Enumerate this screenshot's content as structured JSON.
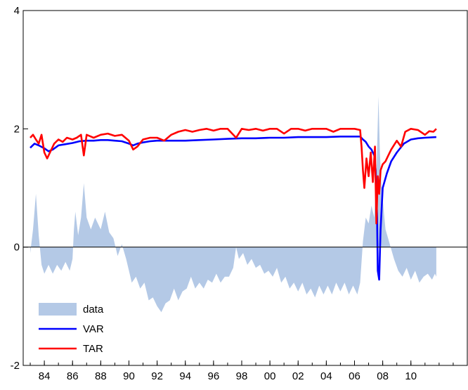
{
  "chart_data": {
    "type": "area",
    "title": "",
    "xlabel": "",
    "ylabel": "",
    "xlim": [
      1982.5,
      2014.0
    ],
    "ylim": [
      -2,
      4
    ],
    "y_ticks": [
      -2,
      0,
      2,
      4
    ],
    "x_ticks": [
      1984,
      1986,
      1988,
      1990,
      1992,
      1994,
      1996,
      1998,
      2000,
      2002,
      2004,
      2006,
      2008,
      2010
    ],
    "x_tick_labels": [
      "84",
      "86",
      "88",
      "90",
      "92",
      "94",
      "96",
      "98",
      "00",
      "02",
      "04",
      "06",
      "08",
      "10"
    ],
    "grid": false,
    "zero_line": true,
    "legend": {
      "position": "bottom-left"
    },
    "series": [
      {
        "name": "data",
        "kind": "area",
        "color": "#b4c9e6",
        "points": [
          [
            1983.0,
            -0.1
          ],
          [
            1983.2,
            0.3
          ],
          [
            1983.4,
            0.9
          ],
          [
            1983.6,
            0.2
          ],
          [
            1983.8,
            -0.3
          ],
          [
            1984.0,
            -0.45
          ],
          [
            1984.3,
            -0.3
          ],
          [
            1984.6,
            -0.45
          ],
          [
            1984.9,
            -0.3
          ],
          [
            1985.2,
            -0.4
          ],
          [
            1985.5,
            -0.25
          ],
          [
            1985.8,
            -0.4
          ],
          [
            1986.0,
            -0.2
          ],
          [
            1986.1,
            0.3
          ],
          [
            1986.2,
            0.6
          ],
          [
            1986.4,
            0.2
          ],
          [
            1986.6,
            0.5
          ],
          [
            1986.8,
            1.08
          ],
          [
            1987.0,
            0.5
          ],
          [
            1987.3,
            0.3
          ],
          [
            1987.6,
            0.5
          ],
          [
            1988.0,
            0.3
          ],
          [
            1988.3,
            0.6
          ],
          [
            1988.6,
            0.25
          ],
          [
            1988.9,
            0.15
          ],
          [
            1989.2,
            -0.15
          ],
          [
            1989.5,
            0.05
          ],
          [
            1989.8,
            -0.2
          ],
          [
            1990.0,
            -0.4
          ],
          [
            1990.2,
            -0.6
          ],
          [
            1990.5,
            -0.5
          ],
          [
            1990.8,
            -0.7
          ],
          [
            1991.1,
            -0.6
          ],
          [
            1991.4,
            -0.9
          ],
          [
            1991.7,
            -0.85
          ],
          [
            1992.0,
            -1.0
          ],
          [
            1992.3,
            -1.1
          ],
          [
            1992.6,
            -0.95
          ],
          [
            1992.9,
            -0.9
          ],
          [
            1993.2,
            -0.7
          ],
          [
            1993.5,
            -0.9
          ],
          [
            1993.8,
            -0.75
          ],
          [
            1994.1,
            -0.7
          ],
          [
            1994.4,
            -0.5
          ],
          [
            1994.7,
            -0.7
          ],
          [
            1995.0,
            -0.6
          ],
          [
            1995.3,
            -0.7
          ],
          [
            1995.6,
            -0.55
          ],
          [
            1995.9,
            -0.6
          ],
          [
            1996.2,
            -0.45
          ],
          [
            1996.5,
            -0.6
          ],
          [
            1996.8,
            -0.5
          ],
          [
            1997.1,
            -0.5
          ],
          [
            1997.4,
            -0.35
          ],
          [
            1997.6,
            0.0
          ],
          [
            1997.8,
            -0.2
          ],
          [
            1998.1,
            -0.1
          ],
          [
            1998.4,
            -0.3
          ],
          [
            1998.7,
            -0.2
          ],
          [
            1999.0,
            -0.35
          ],
          [
            1999.3,
            -0.3
          ],
          [
            1999.6,
            -0.45
          ],
          [
            1999.9,
            -0.4
          ],
          [
            2000.2,
            -0.5
          ],
          [
            2000.5,
            -0.35
          ],
          [
            2000.8,
            -0.6
          ],
          [
            2001.1,
            -0.5
          ],
          [
            2001.4,
            -0.7
          ],
          [
            2001.7,
            -0.6
          ],
          [
            2002.0,
            -0.75
          ],
          [
            2002.3,
            -0.6
          ],
          [
            2002.6,
            -0.8
          ],
          [
            2002.9,
            -0.7
          ],
          [
            2003.2,
            -0.85
          ],
          [
            2003.5,
            -0.65
          ],
          [
            2003.8,
            -0.8
          ],
          [
            2004.1,
            -0.65
          ],
          [
            2004.4,
            -0.8
          ],
          [
            2004.7,
            -0.6
          ],
          [
            2005.0,
            -0.75
          ],
          [
            2005.3,
            -0.6
          ],
          [
            2005.6,
            -0.8
          ],
          [
            2005.9,
            -0.65
          ],
          [
            2006.2,
            -0.8
          ],
          [
            2006.4,
            -0.6
          ],
          [
            2006.6,
            0.1
          ],
          [
            2006.8,
            0.5
          ],
          [
            2007.0,
            0.4
          ],
          [
            2007.2,
            0.7
          ],
          [
            2007.4,
            0.5
          ],
          [
            2007.55,
            1.2
          ],
          [
            2007.7,
            2.55
          ],
          [
            2007.8,
            1.6
          ],
          [
            2007.9,
            1.1
          ],
          [
            2008.0,
            0.8
          ],
          [
            2008.2,
            0.3
          ],
          [
            2008.5,
            0.05
          ],
          [
            2008.8,
            -0.2
          ],
          [
            2009.1,
            -0.4
          ],
          [
            2009.4,
            -0.5
          ],
          [
            2009.7,
            -0.35
          ],
          [
            2010.0,
            -0.55
          ],
          [
            2010.3,
            -0.4
          ],
          [
            2010.6,
            -0.6
          ],
          [
            2010.9,
            -0.5
          ],
          [
            2011.2,
            -0.45
          ],
          [
            2011.5,
            -0.55
          ],
          [
            2011.7,
            -0.45
          ],
          [
            2011.8,
            -0.5
          ]
        ]
      },
      {
        "name": "VAR",
        "kind": "line",
        "color": "#0000ff",
        "points": [
          [
            1983.0,
            1.68
          ],
          [
            1983.3,
            1.75
          ],
          [
            1983.6,
            1.72
          ],
          [
            1984.0,
            1.67
          ],
          [
            1984.3,
            1.62
          ],
          [
            1984.6,
            1.65
          ],
          [
            1985.0,
            1.72
          ],
          [
            1985.5,
            1.74
          ],
          [
            1986.0,
            1.76
          ],
          [
            1986.5,
            1.79
          ],
          [
            1987.0,
            1.8
          ],
          [
            1987.5,
            1.8
          ],
          [
            1988.0,
            1.81
          ],
          [
            1988.5,
            1.81
          ],
          [
            1989.0,
            1.8
          ],
          [
            1989.5,
            1.79
          ],
          [
            1990.0,
            1.75
          ],
          [
            1990.3,
            1.72
          ],
          [
            1990.6,
            1.75
          ],
          [
            1991.0,
            1.77
          ],
          [
            1991.5,
            1.79
          ],
          [
            1992.0,
            1.8
          ],
          [
            1993.0,
            1.8
          ],
          [
            1994.0,
            1.8
          ],
          [
            1995.0,
            1.81
          ],
          [
            1996.0,
            1.82
          ],
          [
            1997.0,
            1.83
          ],
          [
            1998.0,
            1.84
          ],
          [
            1999.0,
            1.84
          ],
          [
            2000.0,
            1.85
          ],
          [
            2001.0,
            1.85
          ],
          [
            2002.0,
            1.86
          ],
          [
            2003.0,
            1.86
          ],
          [
            2004.0,
            1.86
          ],
          [
            2005.0,
            1.87
          ],
          [
            2006.0,
            1.87
          ],
          [
            2006.4,
            1.87
          ],
          [
            2006.6,
            1.82
          ],
          [
            2006.8,
            1.78
          ],
          [
            2007.0,
            1.7
          ],
          [
            2007.2,
            1.65
          ],
          [
            2007.4,
            1.55
          ],
          [
            2007.5,
            1.3
          ],
          [
            2007.6,
            0.5
          ],
          [
            2007.65,
            -0.4
          ],
          [
            2007.75,
            -0.55
          ],
          [
            2007.85,
            0.3
          ],
          [
            2008.0,
            1.0
          ],
          [
            2008.3,
            1.25
          ],
          [
            2008.6,
            1.45
          ],
          [
            2009.0,
            1.6
          ],
          [
            2009.5,
            1.75
          ],
          [
            2010.0,
            1.82
          ],
          [
            2010.5,
            1.84
          ],
          [
            2011.0,
            1.85
          ],
          [
            2011.8,
            1.86
          ]
        ]
      },
      {
        "name": "TAR",
        "kind": "line",
        "color": "#ff0000",
        "points": [
          [
            1983.0,
            1.85
          ],
          [
            1983.2,
            1.9
          ],
          [
            1983.4,
            1.82
          ],
          [
            1983.6,
            1.75
          ],
          [
            1983.8,
            1.9
          ],
          [
            1984.0,
            1.6
          ],
          [
            1984.2,
            1.5
          ],
          [
            1984.4,
            1.6
          ],
          [
            1984.7,
            1.75
          ],
          [
            1985.0,
            1.82
          ],
          [
            1985.3,
            1.78
          ],
          [
            1985.6,
            1.85
          ],
          [
            1986.0,
            1.82
          ],
          [
            1986.3,
            1.85
          ],
          [
            1986.6,
            1.9
          ],
          [
            1986.8,
            1.55
          ],
          [
            1987.0,
            1.9
          ],
          [
            1987.5,
            1.85
          ],
          [
            1988.0,
            1.9
          ],
          [
            1988.5,
            1.92
          ],
          [
            1989.0,
            1.88
          ],
          [
            1989.5,
            1.9
          ],
          [
            1990.0,
            1.8
          ],
          [
            1990.3,
            1.65
          ],
          [
            1990.6,
            1.7
          ],
          [
            1991.0,
            1.82
          ],
          [
            1991.5,
            1.85
          ],
          [
            1992.0,
            1.85
          ],
          [
            1992.5,
            1.8
          ],
          [
            1993.0,
            1.9
          ],
          [
            1993.5,
            1.95
          ],
          [
            1994.0,
            1.98
          ],
          [
            1994.5,
            1.95
          ],
          [
            1995.0,
            1.98
          ],
          [
            1995.5,
            2.0
          ],
          [
            1996.0,
            1.97
          ],
          [
            1996.5,
            2.0
          ],
          [
            1997.0,
            2.0
          ],
          [
            1997.6,
            1.85
          ],
          [
            1998.0,
            2.0
          ],
          [
            1998.5,
            1.98
          ],
          [
            1999.0,
            2.0
          ],
          [
            1999.5,
            1.97
          ],
          [
            2000.0,
            2.0
          ],
          [
            2000.5,
            2.0
          ],
          [
            2001.0,
            1.92
          ],
          [
            2001.5,
            2.0
          ],
          [
            2002.0,
            2.0
          ],
          [
            2002.5,
            1.97
          ],
          [
            2003.0,
            2.0
          ],
          [
            2003.5,
            2.0
          ],
          [
            2004.0,
            2.0
          ],
          [
            2004.5,
            1.95
          ],
          [
            2005.0,
            2.0
          ],
          [
            2005.5,
            2.0
          ],
          [
            2006.0,
            2.0
          ],
          [
            2006.4,
            1.98
          ],
          [
            2006.5,
            1.7
          ],
          [
            2006.6,
            1.3
          ],
          [
            2006.7,
            1.0
          ],
          [
            2006.85,
            1.5
          ],
          [
            2007.0,
            1.2
          ],
          [
            2007.15,
            1.6
          ],
          [
            2007.3,
            1.1
          ],
          [
            2007.45,
            1.7
          ],
          [
            2007.55,
            0.4
          ],
          [
            2007.65,
            1.2
          ],
          [
            2007.75,
            0.9
          ],
          [
            2007.85,
            1.3
          ],
          [
            2008.0,
            1.4
          ],
          [
            2008.2,
            1.45
          ],
          [
            2008.4,
            1.55
          ],
          [
            2008.6,
            1.65
          ],
          [
            2009.0,
            1.8
          ],
          [
            2009.3,
            1.7
          ],
          [
            2009.6,
            1.95
          ],
          [
            2010.0,
            2.0
          ],
          [
            2010.5,
            1.98
          ],
          [
            2011.0,
            1.9
          ],
          [
            2011.3,
            1.96
          ],
          [
            2011.6,
            1.95
          ],
          [
            2011.8,
            2.0
          ]
        ]
      }
    ]
  }
}
